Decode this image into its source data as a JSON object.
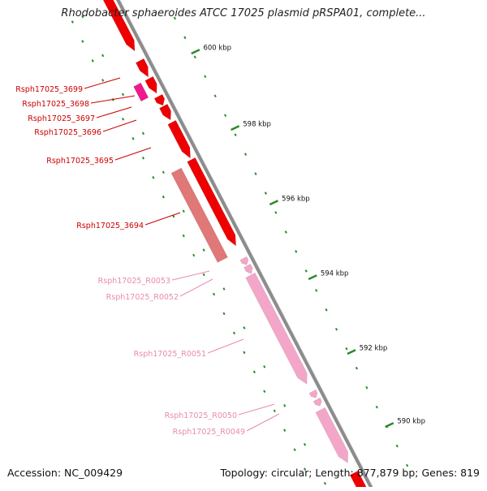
{
  "title": "Rhodobacter sphaeroides ATCC 17025 plasmid pRSPA01, complete...",
  "footer": {
    "accession": "Accession: NC_009429",
    "summary": "Topology: circular; Length: 877,879 bp; Genes: 819"
  },
  "colors": {
    "backbone": "#8c8c8c",
    "forward_gene": "#ee0000",
    "reverse_gene": "#e07878",
    "gene_magenta": "#ee1a8c",
    "rna_pink": "#f4a6c8",
    "label_red": "#cc0000",
    "label_pink": "#e88ab0",
    "tick_green": "#2a8a2a"
  },
  "scale_ticks": [
    {
      "kbp": 600,
      "label": "600 kbp"
    },
    {
      "kbp": 598,
      "label": "598 kbp"
    },
    {
      "kbp": 596,
      "label": "596 kbp"
    },
    {
      "kbp": 594,
      "label": "594 kbp"
    },
    {
      "kbp": 592,
      "label": "592 kbp"
    },
    {
      "kbp": 590,
      "label": "590 kbp"
    }
  ],
  "gene_labels": [
    {
      "name": "Rsph17025_3699",
      "type": "gene"
    },
    {
      "name": "Rsph17025_3698",
      "type": "gene"
    },
    {
      "name": "Rsph17025_3697",
      "type": "gene"
    },
    {
      "name": "Rsph17025_3696",
      "type": "gene"
    },
    {
      "name": "Rsph17025_3695",
      "type": "gene"
    },
    {
      "name": "Rsph17025_3694",
      "type": "gene"
    },
    {
      "name": "Rsph17025_R0053",
      "type": "rna"
    },
    {
      "name": "Rsph17025_R0052",
      "type": "rna"
    },
    {
      "name": "Rsph17025_R0051",
      "type": "rna"
    },
    {
      "name": "Rsph17025_R0050",
      "type": "rna"
    },
    {
      "name": "Rsph17025_R0049",
      "type": "rna"
    }
  ]
}
